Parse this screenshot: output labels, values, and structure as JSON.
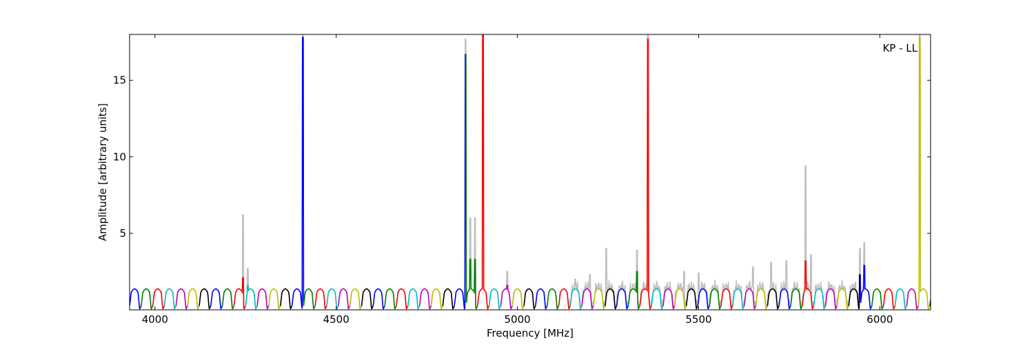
{
  "chart_data": {
    "type": "line",
    "xlabel": "Frequency [MHz]",
    "ylabel": "Amplitude [arbitrary units]",
    "xlim": [
      3930,
      6140
    ],
    "ylim": [
      0,
      18
    ],
    "x_ticks": [
      4000,
      4500,
      5000,
      5500,
      6000
    ],
    "y_ticks": [
      5,
      10,
      15
    ],
    "annotation": "KP - LL",
    "channel_width_mhz": 32,
    "channel_start_mhz": 3930,
    "colors": {
      "gray": "#bfbfbf",
      "cycle": [
        "#0000ff",
        "#008000",
        "#ff0000",
        "#00bfbf",
        "#bf00bf",
        "#bfbf00",
        "#000000"
      ]
    },
    "series": [
      {
        "color": "gray",
        "spikes": [
          {
            "x": 4243,
            "y": 6.2
          },
          {
            "x": 4256,
            "y": 2.7
          },
          {
            "x": 4408,
            "y": 18.0
          },
          {
            "x": 4857,
            "y": 17.7
          },
          {
            "x": 4870,
            "y": 6.0
          },
          {
            "x": 4883,
            "y": 6.0
          },
          {
            "x": 4905,
            "y": 18.0
          },
          {
            "x": 4972,
            "y": 2.5
          },
          {
            "x": 5160,
            "y": 2.0
          },
          {
            "x": 5200,
            "y": 2.3
          },
          {
            "x": 5245,
            "y": 4.0
          },
          {
            "x": 5330,
            "y": 3.9
          },
          {
            "x": 5360,
            "y": 18.0
          },
          {
            "x": 5460,
            "y": 2.5
          },
          {
            "x": 5500,
            "y": 2.4
          },
          {
            "x": 5650,
            "y": 2.8
          },
          {
            "x": 5700,
            "y": 3.1
          },
          {
            "x": 5742,
            "y": 3.2
          },
          {
            "x": 5795,
            "y": 9.4
          },
          {
            "x": 5810,
            "y": 3.6
          },
          {
            "x": 5945,
            "y": 4.0
          },
          {
            "x": 5957,
            "y": 4.4
          },
          {
            "x": 6110,
            "y": 18.0
          }
        ]
      },
      {
        "color": "cycle",
        "spikes": [
          {
            "x": 4243,
            "y": 2.1
          },
          {
            "x": 4256,
            "y": 1.6
          },
          {
            "x": 4408,
            "y": 17.8
          },
          {
            "x": 4857,
            "y": 16.7
          },
          {
            "x": 4870,
            "y": 3.3
          },
          {
            "x": 4883,
            "y": 3.3
          },
          {
            "x": 4905,
            "y": 18.0
          },
          {
            "x": 4972,
            "y": 1.6
          },
          {
            "x": 5330,
            "y": 2.5
          },
          {
            "x": 5360,
            "y": 17.7
          },
          {
            "x": 5795,
            "y": 3.2
          },
          {
            "x": 5945,
            "y": 2.3
          },
          {
            "x": 5957,
            "y": 2.9
          },
          {
            "x": 6110,
            "y": 17.8
          }
        ]
      }
    ]
  }
}
